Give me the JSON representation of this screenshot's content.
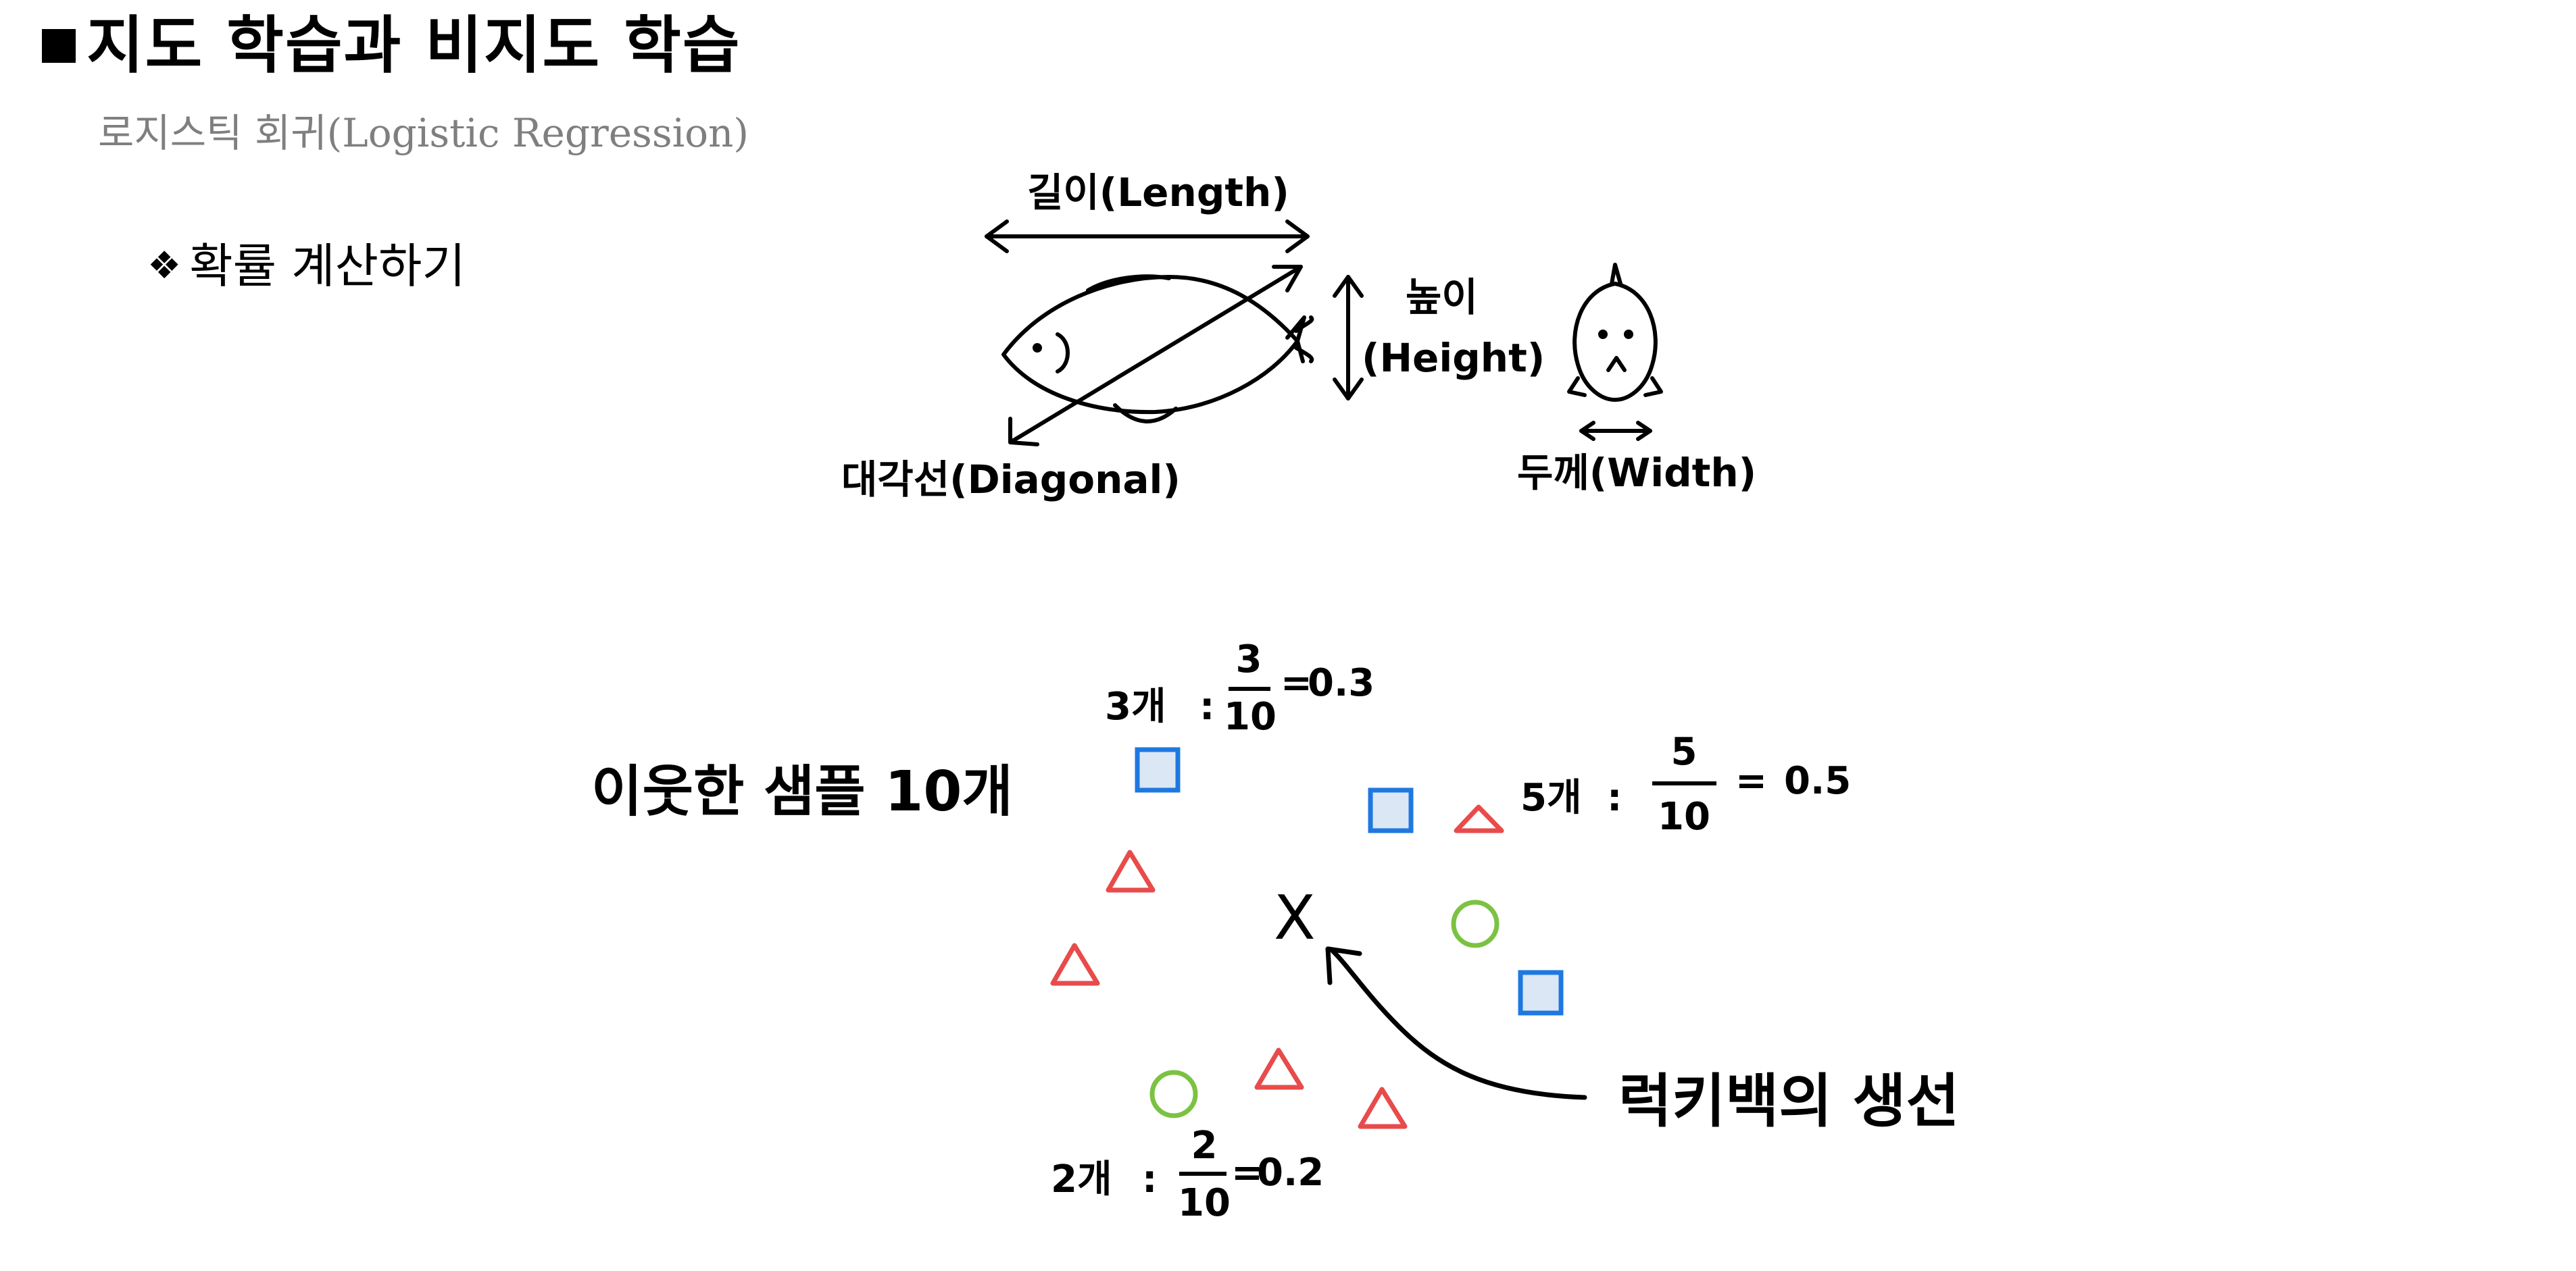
{
  "slide": {
    "title": "지도 학습과 비지도 학습",
    "subtitle": "로지스틱 회귀(Logistic Regression)",
    "bullet": "확률 계산하기",
    "bullet_symbol": "❖"
  },
  "fish_figure": {
    "length_label": "길이(Length)",
    "height_label_ko": "높이",
    "height_label_en": "(Height)",
    "diagonal_label": "대각선(Diagonal)",
    "width_label": "두께(Width)"
  },
  "neighbors_figure": {
    "neighbors_label": "이웃한 샘플 10개",
    "target_label": "럭키백의 생선",
    "target_marker": "X",
    "square_calc": {
      "count": "3개",
      "numerator": "3",
      "denominator": "10",
      "result": "0.3"
    },
    "triangle_calc": {
      "count": "5개",
      "numerator": "5",
      "denominator": "10",
      "result": "0.5"
    },
    "circle_calc": {
      "count": "2개",
      "numerator": "2",
      "denominator": "10",
      "result": "0.2"
    },
    "colors": {
      "square": "#1f78e0",
      "square_fill": "#dbe7f5",
      "triangle": "#e84b4b",
      "circle": "#7cc242"
    }
  }
}
